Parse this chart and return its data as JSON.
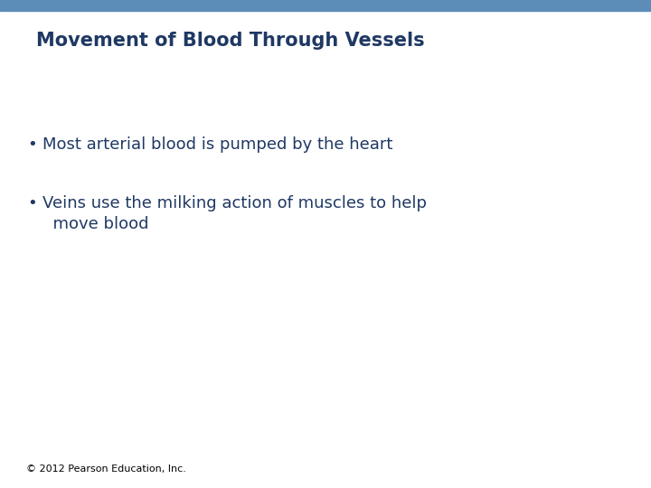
{
  "title": "Movement of Blood Through Vessels",
  "title_color": "#1F3864",
  "title_fontsize": 15,
  "title_fontweight": "bold",
  "header_bar_color": "#5B8DB8",
  "header_bar_height": 0.022,
  "background_color": "#FFFFFF",
  "bullet_points": [
    "Most arterial blood is pumped by the heart",
    "Veins use the milking action of muscles to help\n  move blood"
  ],
  "bullet_color": "#1F3864",
  "bullet_fontsize": 13,
  "bullet_fontweight": "normal",
  "footer_text": "© 2012 Pearson Education, Inc.",
  "footer_fontsize": 8,
  "footer_color": "#000000"
}
